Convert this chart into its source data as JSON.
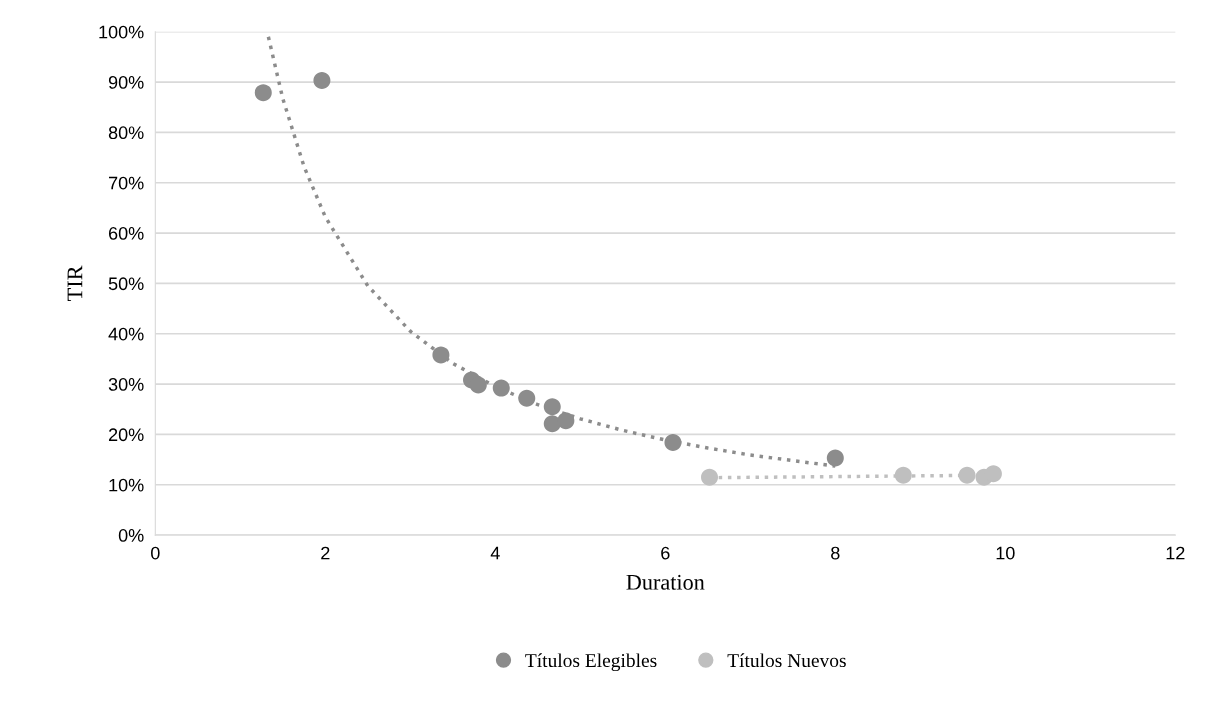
{
  "chart_data": {
    "type": "scatter",
    "xlabel": "Duration",
    "ylabel": "TIR",
    "series": [
      {
        "name": "Títulos Elegibles",
        "color": "#8c8c8c",
        "marker": "circle",
        "x": [
          1.27,
          1.96,
          3.36,
          3.72,
          3.8,
          4.07,
          4.37,
          4.67,
          4.67,
          4.83,
          6.09,
          8.0
        ],
        "values": [
          87.9,
          90.3,
          35.8,
          30.8,
          29.8,
          29.2,
          27.2,
          25.5,
          22.1,
          22.7,
          18.4,
          15.3
        ]
      },
      {
        "name": "Títulos Nuevos",
        "color": "#bfbfbf",
        "marker": "circle",
        "x": [
          6.52,
          8.8,
          9.55,
          9.75,
          9.86
        ],
        "values": [
          11.5,
          11.9,
          11.9,
          11.5,
          12.2
        ]
      },
      {
        "color": "#8c8c8c",
        "type": "line",
        "line_style": "dotted",
        "marker": "none",
        "x": [
          1.33,
          1.5,
          1.75,
          2,
          2.5,
          3,
          3.5,
          4,
          4.5,
          5,
          5.5,
          6,
          6.5,
          7,
          7.5,
          8
        ],
        "values": [
          99,
          86.7,
          73.2,
          63.2,
          49.5,
          40.5,
          34.1,
          29.5,
          25.9,
          23.1,
          20.8,
          18.9,
          17.3,
          15.9,
          14.8,
          13.7
        ]
      },
      {
        "color": "#bfbfbf",
        "type": "line",
        "line_style": "dotted",
        "marker": "none",
        "x": [
          6.52,
          9.86
        ],
        "values": [
          11.4,
          11.9
        ]
      }
    ],
    "xlim": [
      0,
      12
    ],
    "xticks": [
      0,
      2,
      4,
      6,
      8,
      10,
      12
    ],
    "ylim": [
      0,
      100
    ],
    "yticks": [
      {
        "value": 0,
        "label": "0%"
      },
      {
        "value": 10,
        "label": "10%"
      },
      {
        "value": 20,
        "label": "20%"
      },
      {
        "value": 30,
        "label": "30%"
      },
      {
        "value": 40,
        "label": "40%"
      },
      {
        "value": 50,
        "label": "50%"
      },
      {
        "value": 60,
        "label": "60%"
      },
      {
        "value": 70,
        "label": "70%"
      },
      {
        "value": 80,
        "label": "80%"
      },
      {
        "value": 90,
        "label": "90%"
      },
      {
        "value": 100,
        "label": "100%"
      }
    ],
    "grid": "y",
    "legend": "bottom"
  }
}
